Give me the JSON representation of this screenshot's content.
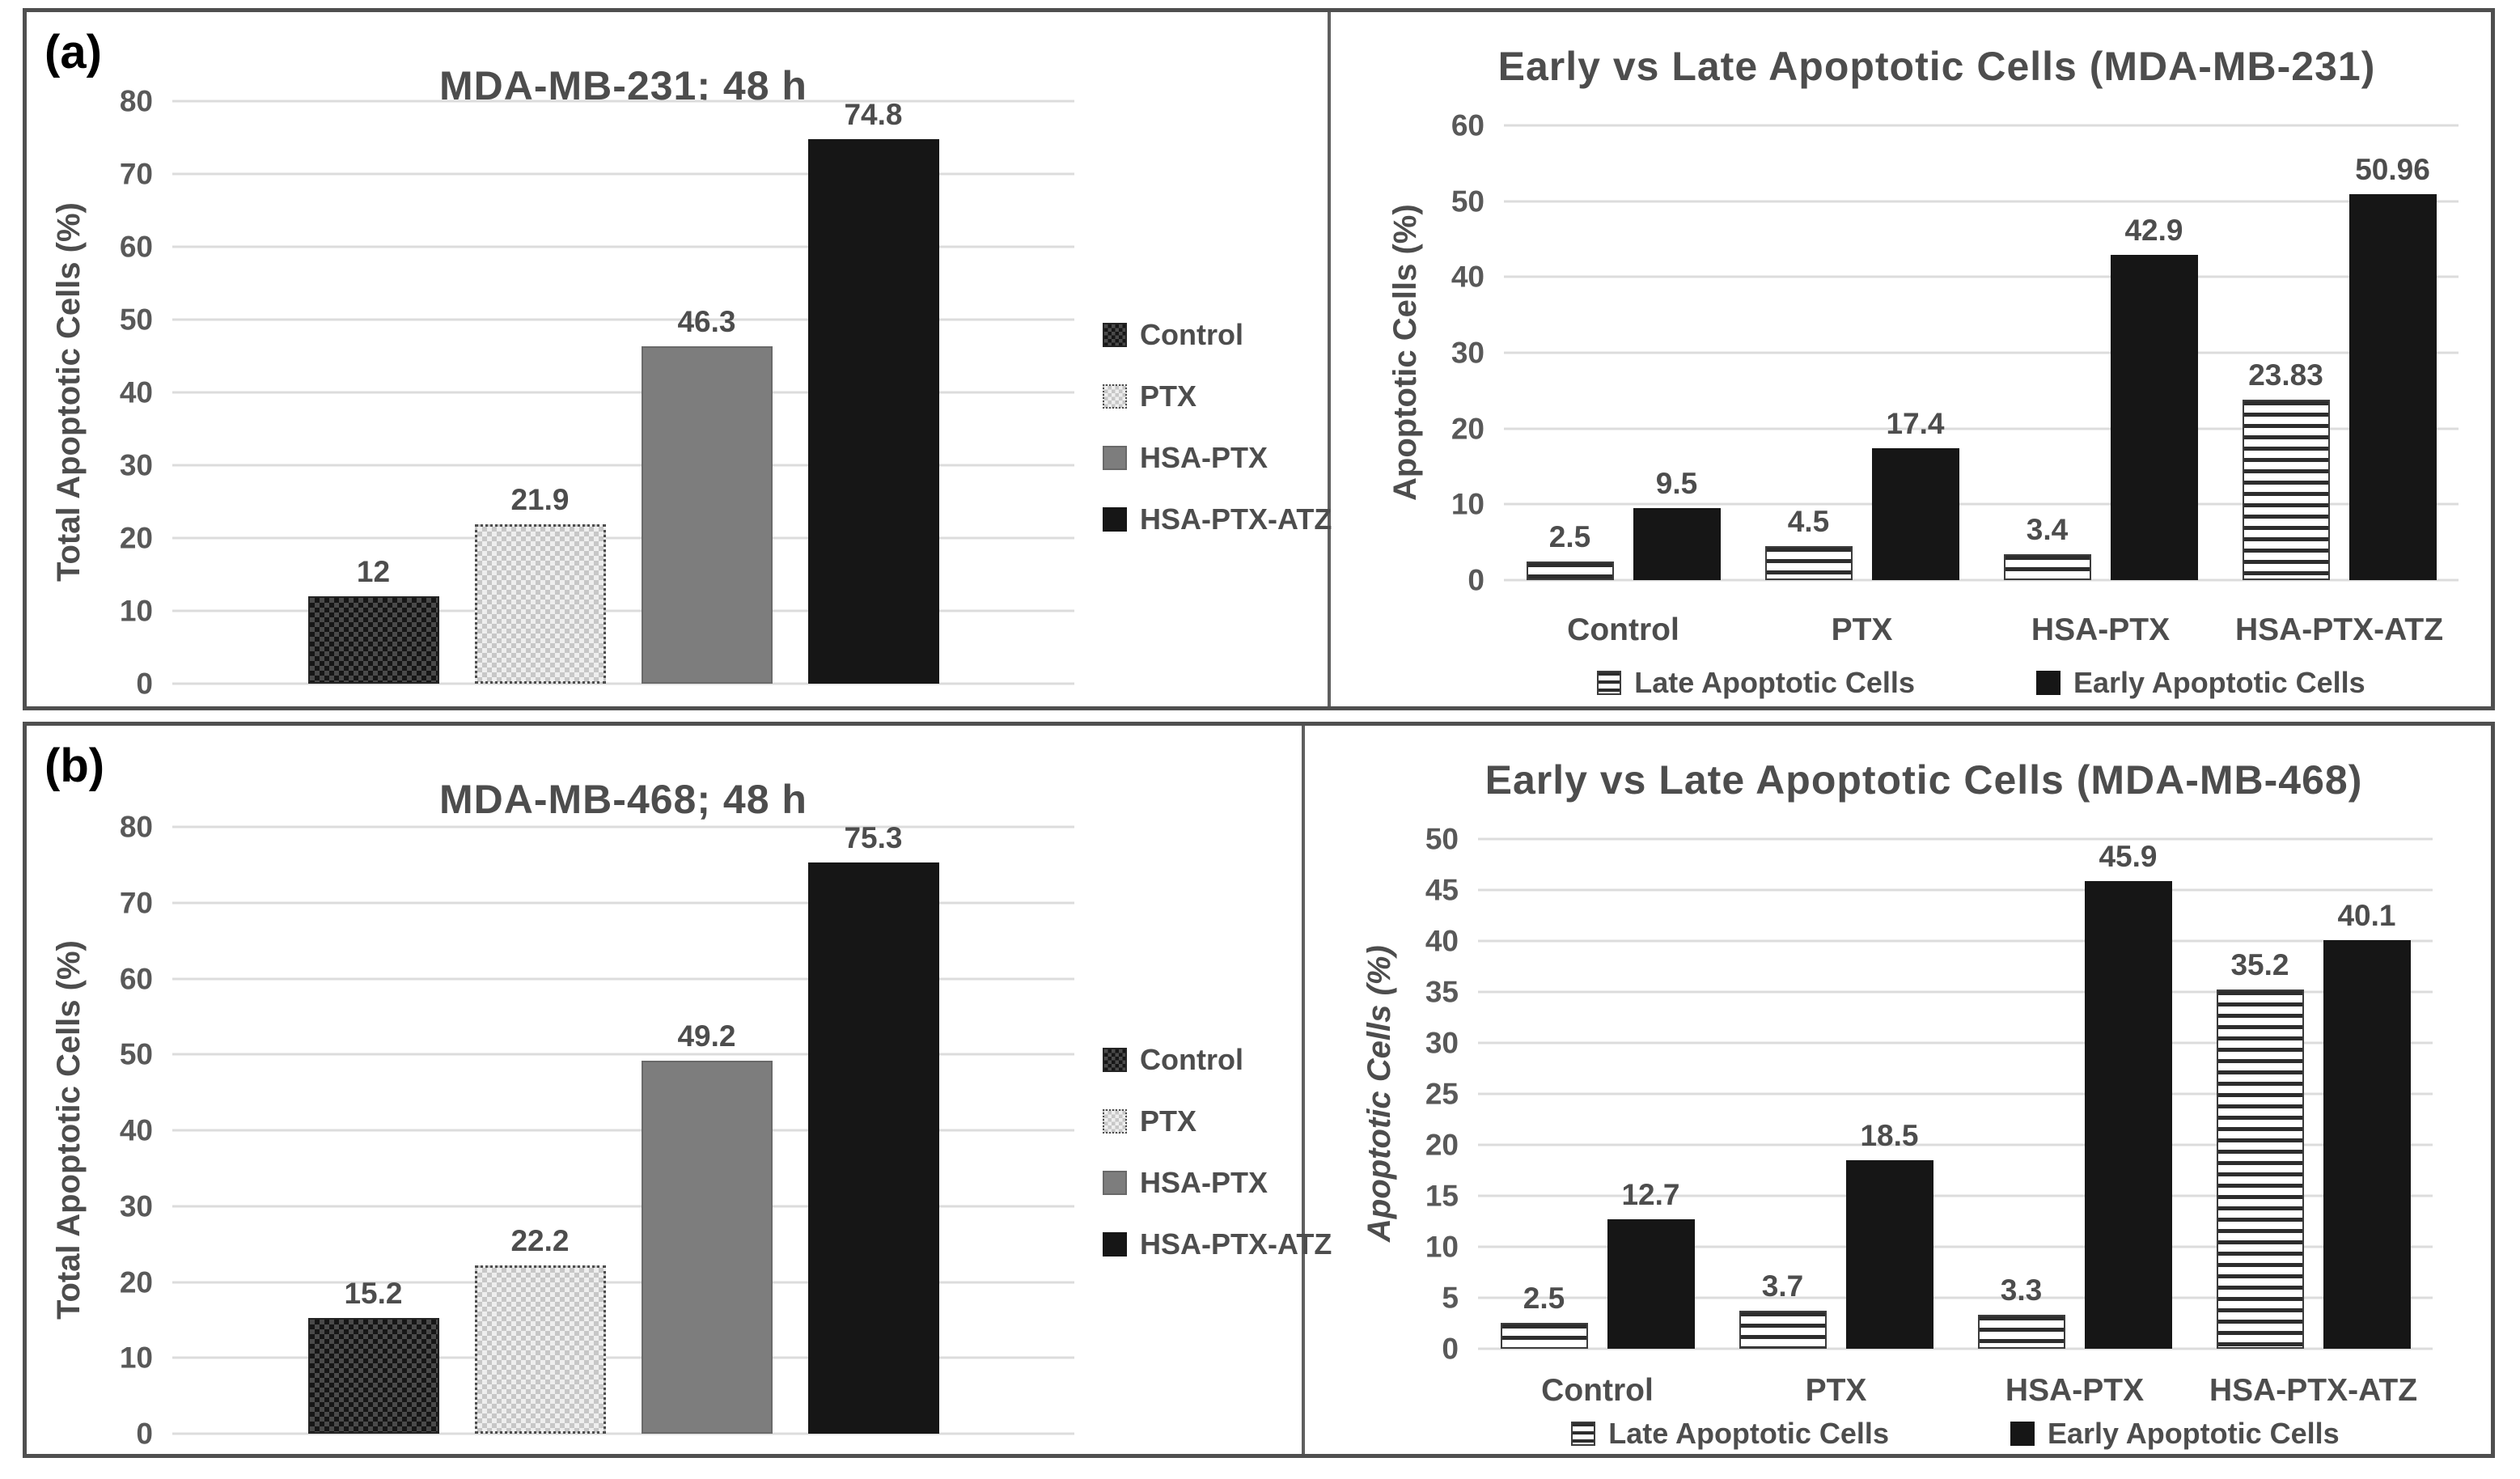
{
  "panels": [
    {
      "label": "(a)"
    },
    {
      "label": "(b)"
    }
  ],
  "palette": {
    "panel_border": "#4f4f4f",
    "title_text": "#4d4d4d",
    "tick_text": "#595959",
    "gridline": "#dcdcdc",
    "bar_black": "#161616",
    "bar_gray": "#7d7d7d",
    "dark_checker": [
      "#161616",
      "#4a4a4a"
    ],
    "light_checker": [
      "#c7c7c7",
      "#eeeeee"
    ],
    "stripe_dark": "#2d2d2d"
  },
  "chart_data": [
    {
      "type": "bar",
      "panel": "a",
      "title": "MDA-MB-231; 48 h",
      "xlabel": "",
      "ylabel": "Total Apoptotic Cells (%)",
      "ymax": 80,
      "ylim": [
        0,
        80
      ],
      "yticks": [
        0,
        10,
        20,
        30,
        40,
        50,
        60,
        70,
        80
      ],
      "grid": true,
      "categories": [
        "Control",
        "PTX",
        "HSA-PTX",
        "HSA-PTX-ATZ"
      ],
      "values": [
        12,
        21.9,
        46.3,
        74.8
      ],
      "value_labels": [
        "12",
        "21.9",
        "46.3",
        "74.8"
      ],
      "bar_patterns": [
        "dark-checker",
        "light-checker",
        "solid-gray",
        "solid-black"
      ],
      "x_axis_labels_shown": false,
      "legend": {
        "position": "right",
        "items": [
          {
            "label": "Control",
            "pattern": "dark-checker"
          },
          {
            "label": "PTX",
            "pattern": "light-checker"
          },
          {
            "label": "HSA-PTX",
            "pattern": "solid-gray"
          },
          {
            "label": "HSA-PTX-ATZ",
            "pattern": "solid-black"
          }
        ]
      }
    },
    {
      "type": "grouped-bar",
      "panel": "a",
      "title": "Early vs Late Apoptotic Cells (MDA-MB-231)",
      "xlabel": "",
      "ylabel": "Apoptotic Cells (%)",
      "ymax": 60,
      "ylim": [
        0,
        60
      ],
      "yticks": [
        0,
        10,
        20,
        30,
        40,
        50,
        60
      ],
      "grid": true,
      "categories": [
        "Control",
        "PTX",
        "HSA-PTX",
        "HSA-PTX-ATZ"
      ],
      "series": [
        {
          "name": "Late Apoptotic Cells",
          "pattern": "h-stripes",
          "values": [
            2.5,
            4.5,
            3.4,
            23.83
          ],
          "value_labels": [
            "2.5",
            "4.5",
            "3.4",
            "23.83"
          ]
        },
        {
          "name": "Early Apoptotic Cells",
          "pattern": "solid-black",
          "values": [
            9.5,
            17.4,
            42.9,
            50.96
          ],
          "value_labels": [
            "9.5",
            "17.4",
            "42.9",
            "50.96"
          ]
        }
      ],
      "x_axis_labels_shown": true,
      "legend": {
        "position": "bottom",
        "items": [
          {
            "label": "Late Apoptotic Cells",
            "pattern": "h-stripes"
          },
          {
            "label": "Early Apoptotic Cells",
            "pattern": "solid-black"
          }
        ]
      }
    },
    {
      "type": "bar",
      "panel": "b",
      "title": "MDA-MB-468; 48 h",
      "xlabel": "",
      "ylabel": "Total Apoptotic Cells (%)",
      "ymax": 80,
      "ylim": [
        0,
        80
      ],
      "yticks": [
        0,
        10,
        20,
        30,
        40,
        50,
        60,
        70,
        80
      ],
      "grid": true,
      "categories": [
        "Control",
        "PTX",
        "HSA-PTX",
        "HSA-PTX-ATZ"
      ],
      "values": [
        15.2,
        22.2,
        49.2,
        75.3
      ],
      "value_labels": [
        "15.2",
        "22.2",
        "49.2",
        "75.3"
      ],
      "bar_patterns": [
        "dark-checker",
        "light-checker",
        "solid-gray",
        "solid-black"
      ],
      "x_axis_labels_shown": false,
      "legend": {
        "position": "right",
        "items": [
          {
            "label": "Control",
            "pattern": "dark-checker"
          },
          {
            "label": "PTX",
            "pattern": "light-checker"
          },
          {
            "label": "HSA-PTX",
            "pattern": "solid-gray"
          },
          {
            "label": "HSA-PTX-ATZ",
            "pattern": "solid-black"
          }
        ]
      }
    },
    {
      "type": "grouped-bar",
      "panel": "b",
      "title": "Early vs Late Apoptotic Cells (MDA-MB-468)",
      "xlabel": "",
      "ylabel": "Apoptotic Cells (%)",
      "ymax": 50,
      "ylim": [
        0,
        50
      ],
      "yticks": [
        0,
        5,
        10,
        15,
        20,
        25,
        30,
        35,
        40,
        45,
        50
      ],
      "grid": true,
      "categories": [
        "Control",
        "PTX",
        "HSA-PTX",
        "HSA-PTX-ATZ"
      ],
      "series": [
        {
          "name": "Late Apoptotic Cells",
          "pattern": "h-stripes",
          "values": [
            2.5,
            3.7,
            3.3,
            35.2
          ],
          "value_labels": [
            "2.5",
            "3.7",
            "3.3",
            "35.2"
          ]
        },
        {
          "name": "Early Apoptotic Cells",
          "pattern": "solid-black",
          "values": [
            12.7,
            18.5,
            45.9,
            40.1
          ],
          "value_labels": [
            "12.7",
            "18.5",
            "45.9",
            "40.1"
          ]
        }
      ],
      "x_axis_labels_shown": true,
      "legend": {
        "position": "bottom",
        "items": [
          {
            "label": "Late Apoptotic Cells",
            "pattern": "h-stripes"
          },
          {
            "label": "Early Apoptotic Cells",
            "pattern": "solid-black"
          }
        ]
      }
    }
  ]
}
